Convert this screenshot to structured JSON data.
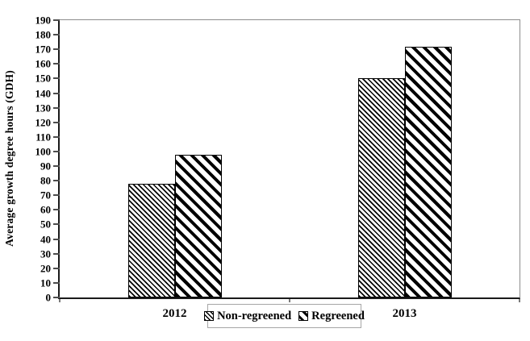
{
  "chart_data": {
    "type": "bar",
    "title": "",
    "xlabel": "",
    "ylabel": "Average growth degree hours (GDH)",
    "categories": [
      "2012",
      "2013"
    ],
    "series": [
      {
        "name": "Non-regreened",
        "values": [
          78,
          150
        ],
        "pattern": "fine-diagonal-hatch"
      },
      {
        "name": "Regreened",
        "values": [
          98,
          172
        ],
        "pattern": "wide-diagonal-stripe"
      }
    ],
    "ylim": [
      0,
      190
    ],
    "ytick_step": 10,
    "grid": false,
    "legend_position": "bottom-center",
    "bar_fill_color": "#000000",
    "bar_background_color": "#ffffff",
    "axis_color": "#1a1a1a",
    "frame_color": "#8c8c8c",
    "text_color": "#000000"
  }
}
